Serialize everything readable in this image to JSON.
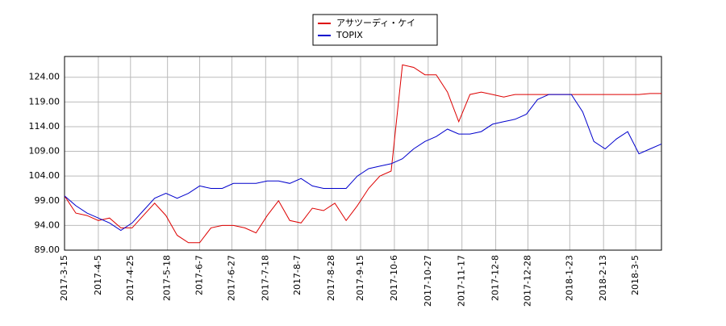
{
  "chart_data": {
    "type": "line",
    "x": [
      "2017-3-15",
      "2017-3-22",
      "2017-3-29",
      "2017-4-5",
      "2017-4-12",
      "2017-4-19",
      "2017-4-26",
      "2017-5-3",
      "2017-5-10",
      "2017-5-17",
      "2017-5-24",
      "2017-5-31",
      "2017-6-7",
      "2017-6-14",
      "2017-6-21",
      "2017-6-28",
      "2017-7-5",
      "2017-7-12",
      "2017-7-19",
      "2017-7-26",
      "2017-8-2",
      "2017-8-9",
      "2017-8-16",
      "2017-8-23",
      "2017-8-30",
      "2017-9-6",
      "2017-9-13",
      "2017-9-20",
      "2017-9-27",
      "2017-10-4",
      "2017-10-11",
      "2017-10-18",
      "2017-10-25",
      "2017-11-1",
      "2017-11-8",
      "2017-11-15",
      "2017-11-22",
      "2017-11-29",
      "2017-12-6",
      "2017-12-13",
      "2017-12-20",
      "2017-12-27",
      "2018-1-3",
      "2018-1-10",
      "2018-1-17",
      "2018-1-24",
      "2018-1-31",
      "2018-2-7",
      "2018-2-14",
      "2018-2-21",
      "2018-2-28",
      "2018-3-7",
      "2018-3-14",
      "2018-3-21"
    ],
    "series": [
      {
        "name": "アサツーディ・ケイ",
        "color": "#dd0000",
        "values": [
          100,
          96.5,
          96,
          95,
          95.5,
          93.5,
          93.5,
          96,
          98.5,
          96,
          92,
          90.5,
          90.5,
          93.5,
          94,
          94,
          93.5,
          92.5,
          96,
          99,
          95,
          94.5,
          97.5,
          97,
          98.5,
          95,
          98,
          101.5,
          104,
          105,
          126.5,
          126,
          124.5,
          124.5,
          121,
          115,
          120.5,
          121,
          120.5,
          120,
          120.5,
          120.5,
          120.5,
          120.5,
          120.5,
          120.5,
          120.5,
          120.5,
          120.5,
          120.5,
          120.5,
          120.5,
          120.7,
          120.7
        ]
      },
      {
        "name": "TOPIX",
        "color": "#0000cc",
        "values": [
          100,
          98,
          96.5,
          95.5,
          94.5,
          93,
          94.5,
          97,
          99.5,
          100.5,
          99.5,
          100.5,
          102,
          101.5,
          101.5,
          102.5,
          102.5,
          102.5,
          103,
          103,
          102.5,
          103.5,
          102,
          101.5,
          101.5,
          101.5,
          104,
          105.5,
          106,
          106.5,
          107.5,
          109.5,
          111,
          112,
          113.5,
          112.5,
          112.5,
          113,
          114.5,
          115,
          115.5,
          116.5,
          119.5,
          120.5,
          120.5,
          120.5,
          117,
          111,
          109.5,
          111.5,
          113,
          108.5,
          109.5,
          110.5
        ]
      }
    ],
    "xlim": [
      "2017-3-15",
      "2018-3-21"
    ],
    "xticks": [
      "2017-3-15",
      "2017-4-5",
      "2017-4-25",
      "2017-5-18",
      "2017-6-7",
      "2017-6-27",
      "2017-7-18",
      "2017-8-7",
      "2017-8-28",
      "2017-9-15",
      "2017-10-6",
      "2017-10-27",
      "2017-11-17",
      "2017-12-8",
      "2017-12-28",
      "2018-1-23",
      "2018-2-13",
      "2018-3-5"
    ],
    "ylim": [
      89,
      128.2
    ],
    "yticks": [
      {
        "value": 89,
        "label": "89.00"
      },
      {
        "value": 94,
        "label": "94.00"
      },
      {
        "value": 99,
        "label": "99.00"
      },
      {
        "value": 104,
        "label": "104.00"
      },
      {
        "value": 109,
        "label": "109.00"
      },
      {
        "value": 114,
        "label": "114.00"
      },
      {
        "value": 119,
        "label": "119.00"
      },
      {
        "value": 124,
        "label": "124.00"
      }
    ],
    "grid": true
  }
}
